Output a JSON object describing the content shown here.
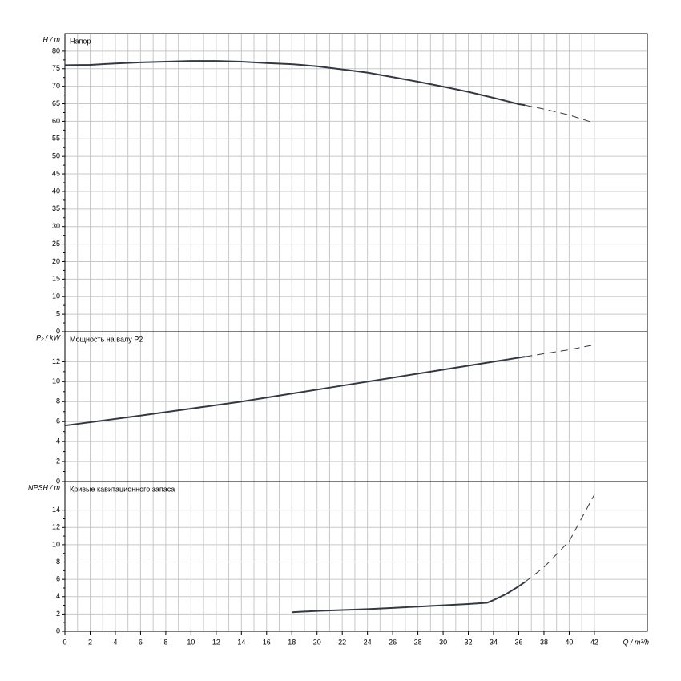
{
  "chart_data": [
    {
      "type": "line",
      "title": "Напор",
      "y_label": "H / m",
      "x": [
        0,
        2,
        4,
        6,
        8,
        10,
        12,
        14,
        16,
        18,
        20,
        22,
        24,
        26,
        28,
        30,
        32,
        34,
        36,
        36.5,
        38,
        40,
        42
      ],
      "series": [
        {
          "style": "solid",
          "color": "#333844",
          "values": [
            76,
            76.1,
            76.5,
            76.8,
            77,
            77.2,
            77.2,
            77,
            76.6,
            76.3,
            75.7,
            74.8,
            73.9,
            72.6,
            71.3,
            69.9,
            68.4,
            66.7,
            64.9,
            64.6,
            null,
            null,
            null
          ]
        },
        {
          "style": "dashed",
          "color": "#333844",
          "values": [
            null,
            null,
            null,
            null,
            null,
            null,
            null,
            null,
            null,
            null,
            null,
            null,
            null,
            null,
            null,
            null,
            null,
            null,
            null,
            64.6,
            63.5,
            61.8,
            59.5
          ]
        }
      ],
      "xlim": [
        0,
        46.2
      ],
      "ylim": [
        0,
        85
      ],
      "yticks": [
        0,
        5,
        10,
        15,
        20,
        25,
        30,
        35,
        40,
        45,
        50,
        55,
        60,
        65,
        70,
        75,
        80
      ],
      "grid": true
    },
    {
      "type": "line",
      "title": "Мощность на валу P2",
      "y_label": "P₂ / kW",
      "x": [
        0,
        6,
        10,
        14,
        18,
        22,
        26,
        30,
        34,
        36.5,
        38,
        40,
        42
      ],
      "series": [
        {
          "style": "solid",
          "color": "#333844",
          "values": [
            5.6,
            6.6,
            7.3,
            8.0,
            8.8,
            9.6,
            10.4,
            11.2,
            12.0,
            12.5,
            null,
            null,
            null
          ]
        },
        {
          "style": "dashed",
          "color": "#333844",
          "values": [
            null,
            null,
            null,
            null,
            null,
            null,
            null,
            null,
            null,
            12.5,
            12.8,
            13.2,
            13.7
          ]
        }
      ],
      "xlim": [
        0,
        46.2
      ],
      "ylim": [
        0,
        15
      ],
      "yticks": [
        0,
        2,
        4,
        6,
        8,
        10,
        12
      ],
      "grid": true
    },
    {
      "type": "line",
      "title": "Кривые кавитационного запаса",
      "y_label": "NPSH / m",
      "x_label": "Q / m³/h",
      "x": [
        18,
        20,
        22,
        24,
        26,
        28,
        30,
        32,
        33.5,
        34,
        35,
        36,
        36.5,
        38,
        40,
        42
      ],
      "series": [
        {
          "style": "solid",
          "color": "#333844",
          "values": [
            2.2,
            2.35,
            2.45,
            2.55,
            2.7,
            2.85,
            3.0,
            3.15,
            3.3,
            3.6,
            4.3,
            5.2,
            5.7,
            null,
            null,
            null
          ]
        },
        {
          "style": "dashed",
          "color": "#333844",
          "values": [
            null,
            null,
            null,
            null,
            null,
            null,
            null,
            null,
            null,
            null,
            null,
            null,
            5.7,
            7.4,
            10.4,
            15.8
          ]
        }
      ],
      "xlim": [
        0,
        46.2
      ],
      "xticks": [
        0,
        2,
        4,
        6,
        8,
        10,
        12,
        14,
        16,
        18,
        20,
        22,
        24,
        26,
        28,
        30,
        32,
        34,
        36,
        38,
        40,
        42
      ],
      "ylim": [
        0,
        17.3
      ],
      "yticks": [
        0,
        2,
        4,
        6,
        8,
        10,
        12,
        14
      ],
      "grid": true
    }
  ]
}
